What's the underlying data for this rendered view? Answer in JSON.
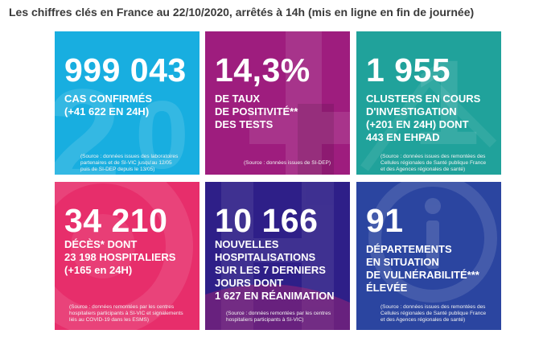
{
  "heading": "Les chiffres clés en France au 22/10/2020, arrêtés à 14h (mis en ligne en fin de journée)",
  "tiles": [
    {
      "value": "999 043",
      "caption": [
        "CAS CONFIRMÉS",
        "(+41 622 EN 24H)"
      ],
      "source": [
        "(Source : données issues des laboratoires",
        "partenaires et de SI-VIC jusqu'au 12/05",
        "puis de SI-DEP depuis le 13/05)"
      ],
      "color": "#18aee0"
    },
    {
      "value": "14,3%",
      "caption": [
        "DE TAUX",
        "DE POSITIVITÉ**",
        "DES TESTS"
      ],
      "source": [
        "(Source : données issues de SI-DEP)"
      ],
      "color": "#9e1d7e"
    },
    {
      "value": "1 955",
      "caption": [
        "CLUSTERS EN COURS",
        "D'INVESTIGATION",
        "(+201 EN 24H) DONT",
        "443 EN EHPAD"
      ],
      "source": [
        "(Source : données issues des remontées des",
        "Cellules régionales de Santé publique France",
        "et des Agences régionales de santé)"
      ],
      "color": "#20a29b"
    },
    {
      "value": "34 210",
      "caption": [
        "DÉCÈS* DONT",
        "23 198 HOSPITALIERS",
        "(+165 en 24H)"
      ],
      "source": [
        "(Source : données remontées par les centres",
        "hospitaliers participants à SI-VIC et signalements",
        "liés au COVID-19 dans les ESMS)"
      ],
      "color": "#e72e6b"
    },
    {
      "value": "10 166",
      "caption": [
        "NOUVELLES",
        "HOSPITALISATIONS",
        "SUR LES 7 DERNIERS",
        "JOURS DONT",
        "1 627 EN RÉANIMATION"
      ],
      "source": [
        "(Source : données remontées par les centres",
        "hospitaliers participants à SI-VIC)"
      ],
      "color": "#2e1f88"
    },
    {
      "value": "91",
      "caption": [
        "DÉPARTEMENTS",
        "EN SITUATION",
        "DE VULNÉRABILITÉ***",
        "ÉLEVÉE"
      ],
      "source": [
        "(Source : données issues des remontées des",
        "Cellules régionales de Santé publique France",
        "et des Agences régionales de santé)"
      ],
      "color": "#2b45a0"
    }
  ]
}
